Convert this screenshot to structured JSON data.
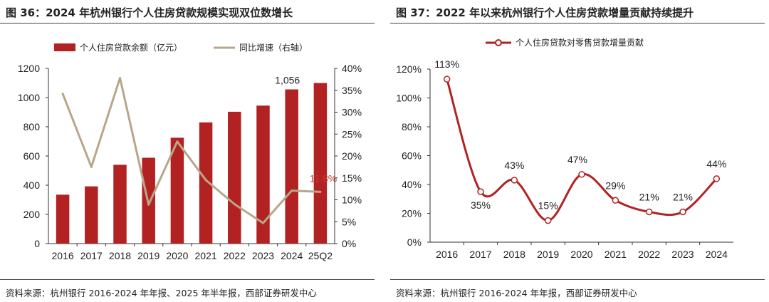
{
  "left": {
    "figure_title": "图 36：2024 年杭州银行个人住房贷款规模实现双位数增长",
    "source": "资料来源：杭州银行 2016-2024 年年报、2025 年半年报，西部证券研发中心",
    "chart_data": {
      "type": "bar",
      "categories": [
        "2016",
        "2017",
        "2018",
        "2019",
        "2020",
        "2021",
        "2022",
        "2023",
        "2024",
        "25Q2"
      ],
      "series": [
        {
          "name": "个人住房贷款余额（亿元）",
          "type": "bar",
          "axis": "left",
          "color": "#b22222",
          "values": [
            335,
            392,
            540,
            588,
            725,
            830,
            903,
            945,
            1056,
            1100
          ]
        },
        {
          "name": "同比增速（右轴）",
          "type": "line",
          "axis": "right",
          "color": "#b8a68a",
          "values": [
            34.2,
            17.5,
            37.8,
            8.9,
            23.3,
            14.5,
            9.0,
            4.7,
            12.1,
            11.8
          ]
        }
      ],
      "ylim_left": [
        0,
        1200
      ],
      "yticks_left": [
        "0",
        "200",
        "400",
        "600",
        "800",
        "1000",
        "1200"
      ],
      "ylim_right": [
        0,
        40
      ],
      "yticks_right": [
        "0%",
        "5%",
        "10%",
        "15%",
        "20%",
        "25%",
        "30%",
        "35%",
        "40%"
      ],
      "annotations": [
        {
          "text": "1,056",
          "category": "2024",
          "color": "#222222"
        },
        {
          "text": "11.8%",
          "category": "25Q2",
          "color": "#c0392b"
        }
      ],
      "legend_position": "top-left",
      "grid": false
    }
  },
  "right": {
    "figure_title": "图 37：2022 年以来杭州银行个人住房贷款增量贡献持续提升",
    "source": "资料来源：杭州银行 2016-2024 年年报，西部证券研发中心",
    "chart_data": {
      "type": "line",
      "categories": [
        "2016",
        "2017",
        "2018",
        "2019",
        "2020",
        "2021",
        "2022",
        "2023",
        "2024"
      ],
      "series": [
        {
          "name": "个人住房贷款对零售贷款增量贡献",
          "color": "#b22222",
          "values": [
            113,
            35,
            43,
            15,
            47,
            29,
            21,
            21,
            44
          ],
          "labels": [
            "113%",
            "35%",
            "43%",
            "15%",
            "47%",
            "29%",
            "21%",
            "21%",
            "44%"
          ]
        }
      ],
      "ylim": [
        0,
        120
      ],
      "yticks": [
        "0%",
        "20%",
        "40%",
        "60%",
        "80%",
        "100%",
        "120%"
      ],
      "legend_position": "top",
      "smooth": true,
      "grid": false
    }
  }
}
